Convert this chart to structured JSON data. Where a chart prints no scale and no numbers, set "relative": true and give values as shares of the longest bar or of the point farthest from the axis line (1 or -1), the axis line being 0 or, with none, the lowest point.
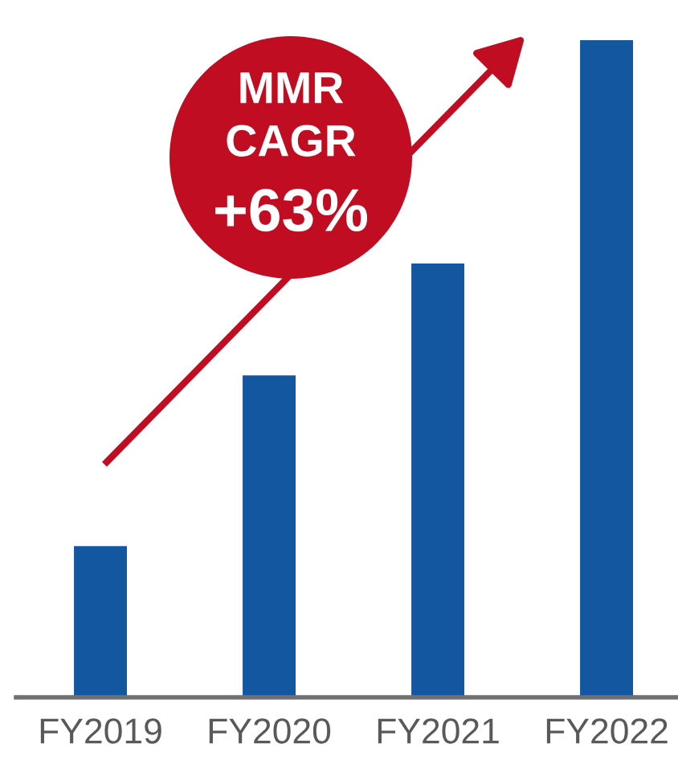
{
  "chart_data": {
    "type": "bar",
    "categories": [
      "FY2019",
      "FY2020",
      "FY2021",
      "FY2022"
    ],
    "values": [
      0.23,
      0.49,
      0.66,
      1
    ],
    "color": "#1357a0",
    "relative": true,
    "annotations": [
      "MMR",
      "CAGR",
      "+63%"
    ]
  }
}
